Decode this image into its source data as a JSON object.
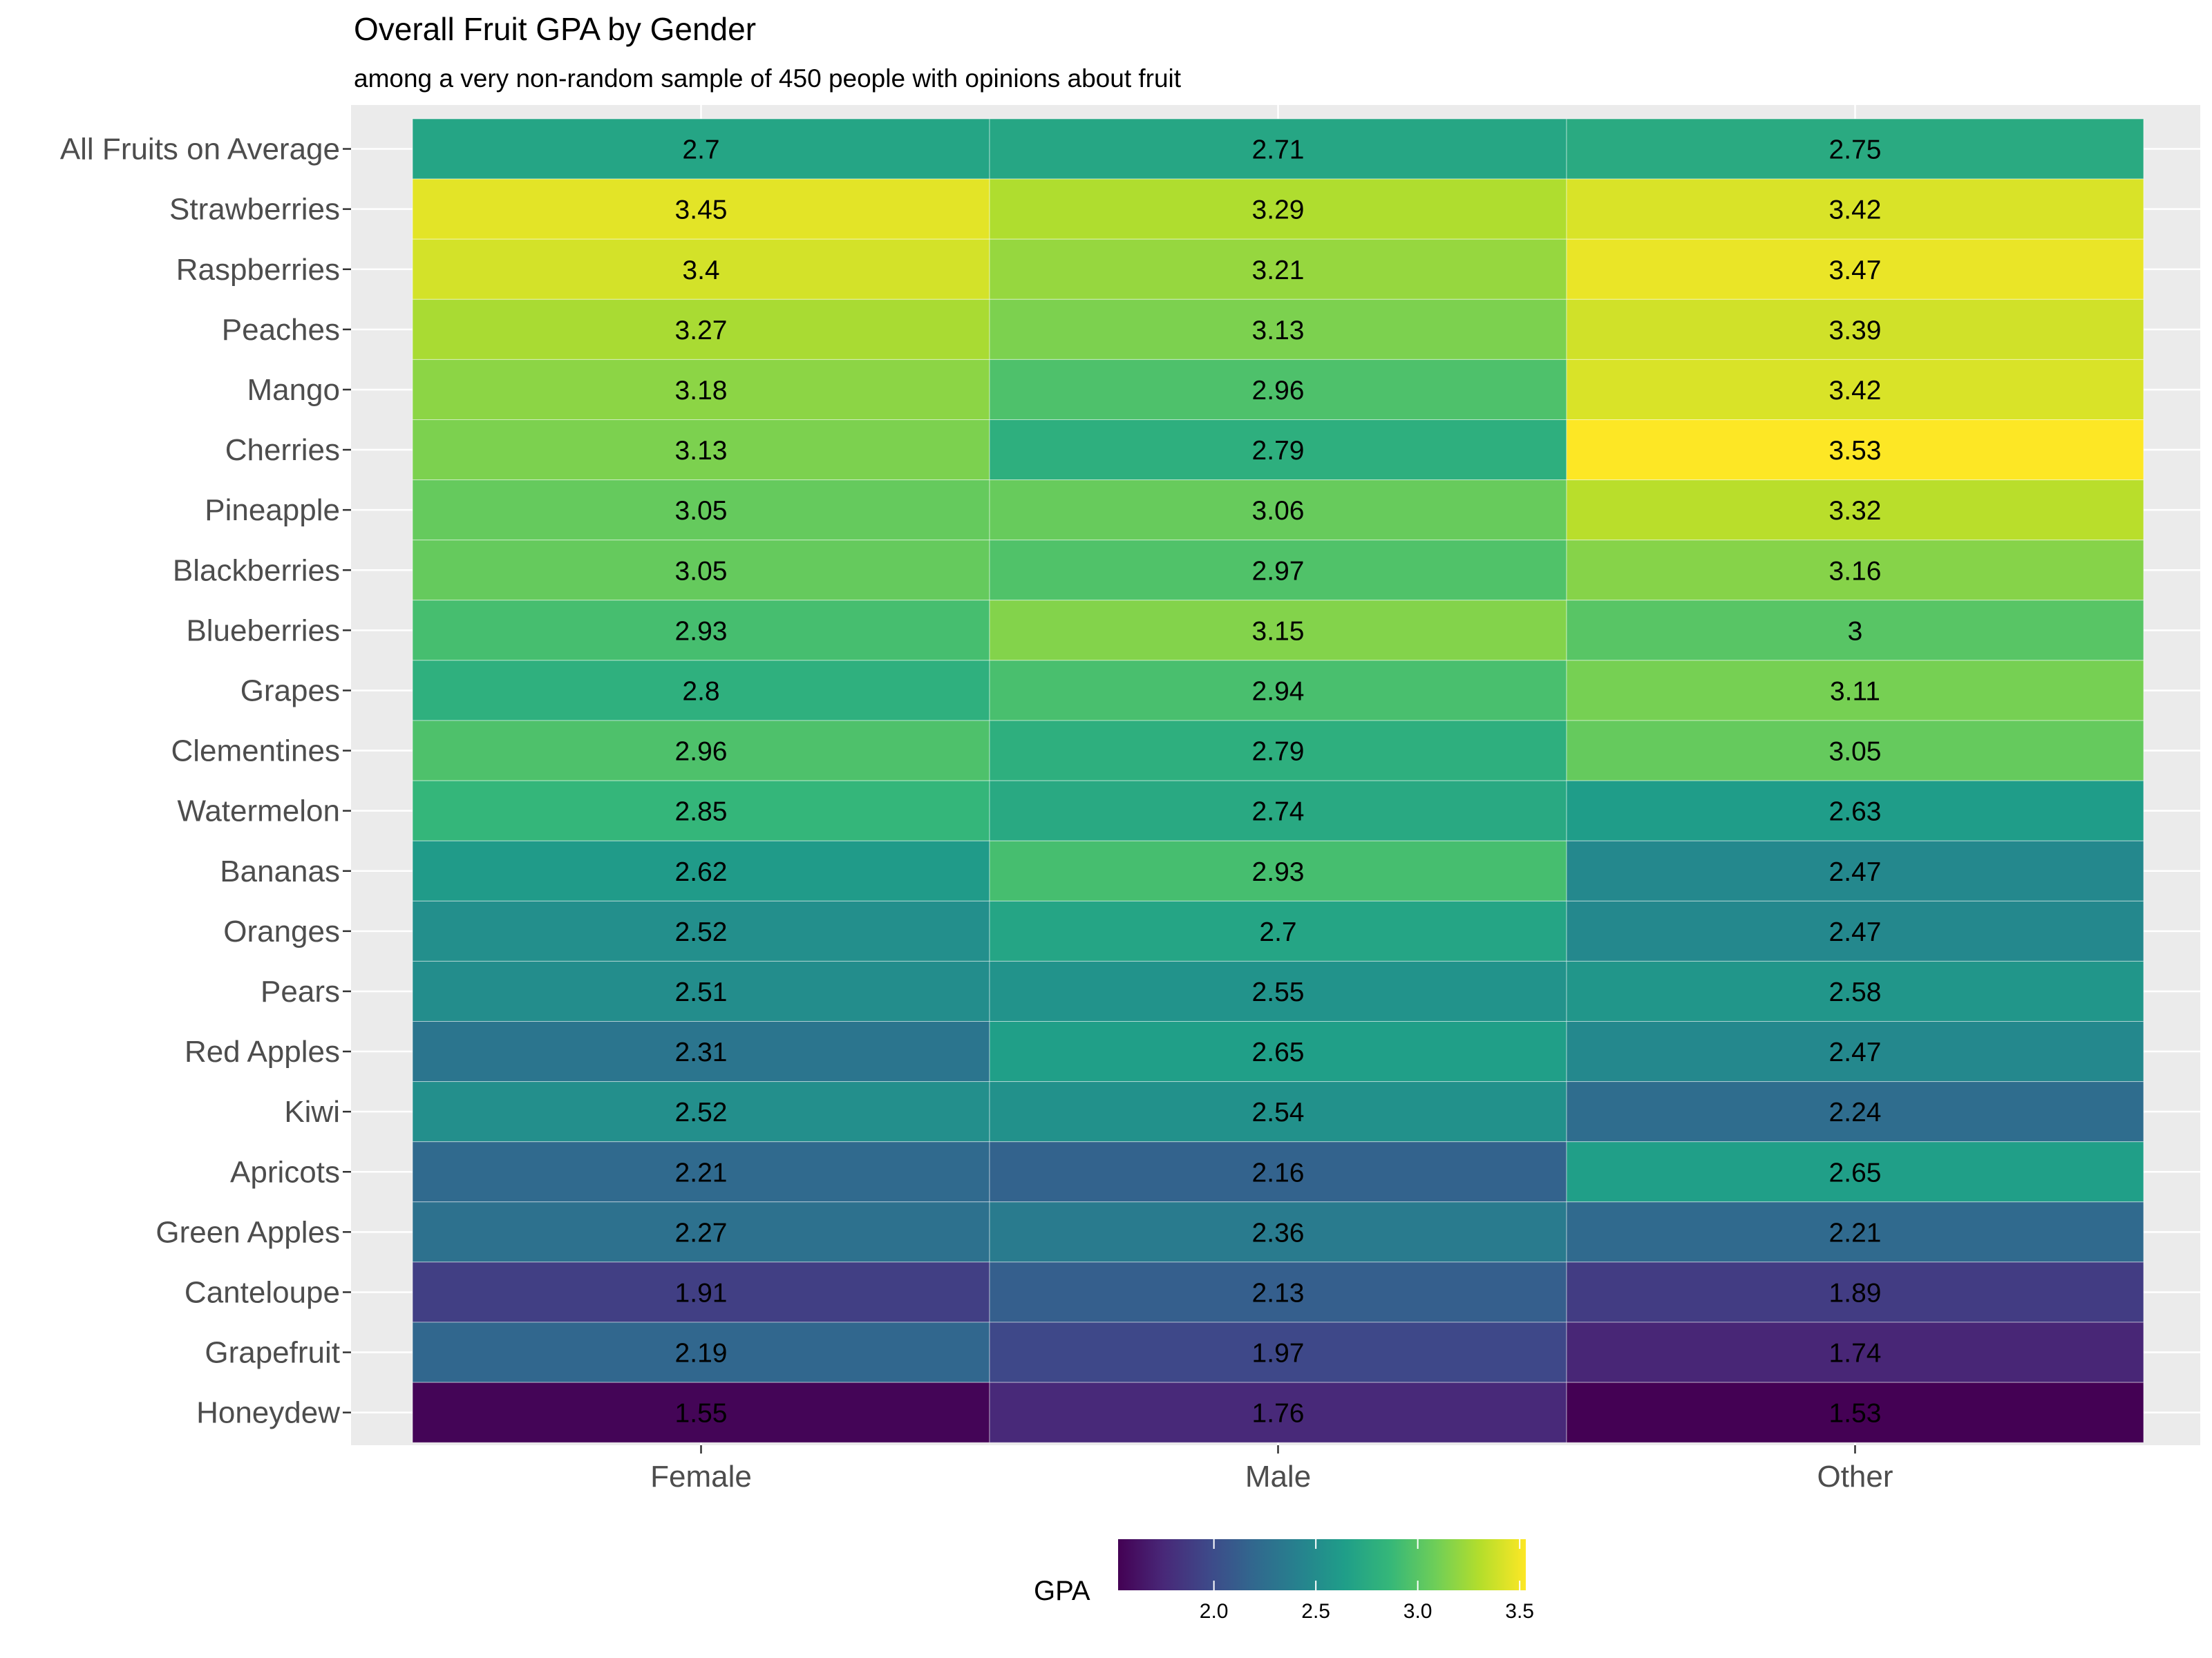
{
  "chart_data": {
    "type": "heatmap",
    "title": "Overall Fruit GPA by Gender",
    "subtitle": "among a very non-random sample of 450 people with opinions about fruit",
    "xlabel": "",
    "ylabel": "",
    "x_categories": [
      "Female",
      "Male",
      "Other"
    ],
    "y_categories": [
      "All Fruits on Average",
      "Strawberries",
      "Raspberries",
      "Peaches",
      "Mango",
      "Cherries",
      "Pineapple",
      "Blackberries",
      "Blueberries",
      "Grapes",
      "Clementines",
      "Watermelon",
      "Bananas",
      "Oranges",
      "Pears",
      "Red Apples",
      "Kiwi",
      "Apricots",
      "Green Apples",
      "Canteloupe",
      "Grapefruit",
      "Honeydew"
    ],
    "values": [
      [
        2.7,
        2.71,
        2.75
      ],
      [
        3.45,
        3.29,
        3.42
      ],
      [
        3.4,
        3.21,
        3.47
      ],
      [
        3.27,
        3.13,
        3.39
      ],
      [
        3.18,
        2.96,
        3.42
      ],
      [
        3.13,
        2.79,
        3.53
      ],
      [
        3.05,
        3.06,
        3.32
      ],
      [
        3.05,
        2.97,
        3.16
      ],
      [
        2.93,
        3.15,
        3
      ],
      [
        2.8,
        2.94,
        3.11
      ],
      [
        2.96,
        2.79,
        3.05
      ],
      [
        2.85,
        2.74,
        2.63
      ],
      [
        2.62,
        2.93,
        2.47
      ],
      [
        2.52,
        2.7,
        2.47
      ],
      [
        2.51,
        2.55,
        2.58
      ],
      [
        2.31,
        2.65,
        2.47
      ],
      [
        2.52,
        2.54,
        2.24
      ],
      [
        2.21,
        2.16,
        2.65
      ],
      [
        2.27,
        2.36,
        2.21
      ],
      [
        1.91,
        2.13,
        1.89
      ],
      [
        2.19,
        1.97,
        1.74
      ],
      [
        1.55,
        1.76,
        1.53
      ]
    ],
    "legend": {
      "title": "GPA",
      "placement": "bottom",
      "range": [
        1.53,
        3.53
      ],
      "ticks": [
        2.0,
        2.5,
        3.0,
        3.5
      ],
      "tick_labels": [
        "2.0",
        "2.5",
        "3.0",
        "3.5"
      ],
      "colormap": "viridis"
    },
    "colors": {
      "panel_background": "#ebebeb",
      "grid": "#ffffff",
      "viridis_stops": [
        "#440154",
        "#482878",
        "#3e4989",
        "#31688e",
        "#26828e",
        "#1f9e89",
        "#35b779",
        "#6ece58",
        "#b5de2b",
        "#fde725"
      ]
    }
  }
}
